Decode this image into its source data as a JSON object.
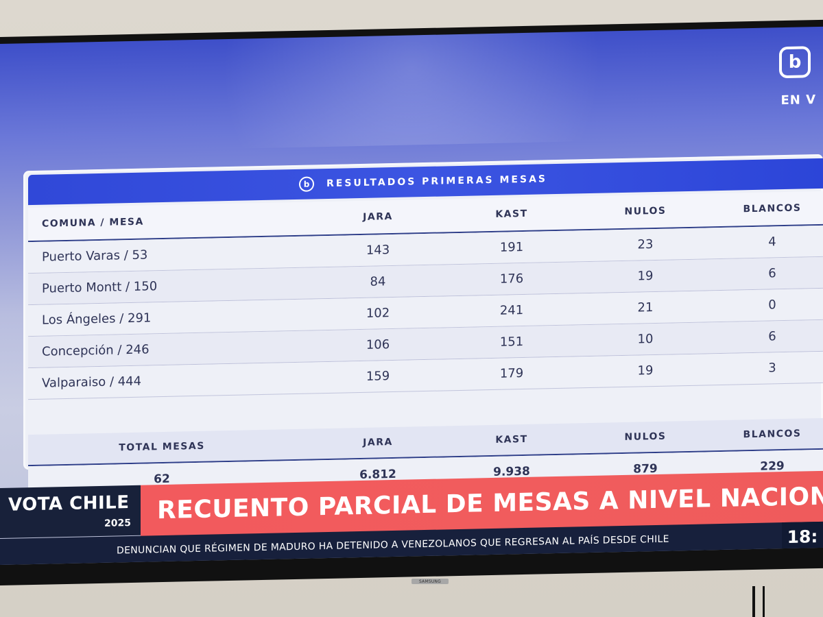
{
  "screen": {
    "live_label": "EN V"
  },
  "panel": {
    "title": "RESULTADOS PRIMERAS MESAS",
    "columns": [
      "COMUNA / MESA",
      "JARA",
      "KAST",
      "NULOS",
      "BLANCOS"
    ],
    "rows": [
      {
        "comuna_mesa": "Puerto Varas / 53",
        "jara": "143",
        "kast": "191",
        "nulos": "23",
        "blancos": "4"
      },
      {
        "comuna_mesa": "Puerto Montt / 150",
        "jara": "84",
        "kast": "176",
        "nulos": "19",
        "blancos": "6"
      },
      {
        "comuna_mesa": "Los Ángeles / 291",
        "jara": "102",
        "kast": "241",
        "nulos": "21",
        "blancos": "0"
      },
      {
        "comuna_mesa": "Concepción / 246",
        "jara": "106",
        "kast": "151",
        "nulos": "10",
        "blancos": "6"
      },
      {
        "comuna_mesa": "Valparaiso / 444",
        "jara": "159",
        "kast": "179",
        "nulos": "19",
        "blancos": "3"
      }
    ],
    "totals_columns": [
      "TOTAL MESAS",
      "JARA",
      "KAST",
      "NULOS",
      "BLANCOS"
    ],
    "totals": {
      "total_mesas": "62",
      "jara": "6.812",
      "kast": "9.938",
      "nulos": "879",
      "blancos": "229"
    }
  },
  "lower_third": {
    "brand": "VOTA CHILE",
    "year": "2025",
    "headline": "RECUENTO PARCIAL DE MESAS A NIVEL NACIONA",
    "ticker": "DENUNCIAN QUE RÉGIMEN DE MADURO HA DETENIDO A VENEZOLANOS QUE REGRESAN AL PAÍS DESDE CHILE",
    "time": "18:"
  },
  "device": {
    "brand": "SAMSUNG"
  },
  "colors": {
    "panel_blue": "#3048d8",
    "headline_red": "#f25a5d",
    "navy": "#17203c"
  },
  "icons": {
    "channel_logo": "channel-logo-icon"
  }
}
